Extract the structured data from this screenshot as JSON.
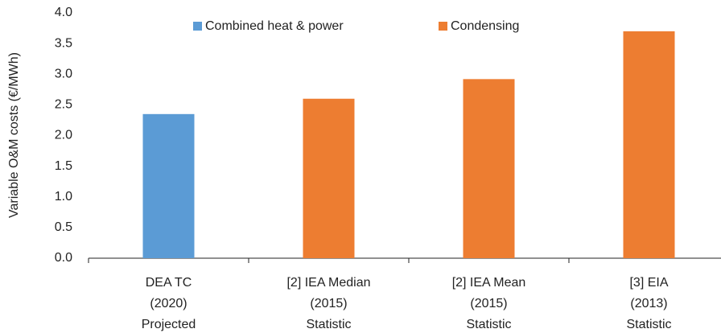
{
  "chart_data": {
    "type": "bar",
    "y_label": "Variable O&M costs (€/MWh)",
    "categories": [
      [
        "DEA TC",
        "(2020)",
        "Projected"
      ],
      [
        "[2] IEA Median",
        "(2015)",
        "Statistic"
      ],
      [
        "[2] IEA Mean",
        "(2015)",
        "Statistic"
      ],
      [
        "[3] EIA",
        "(2013)",
        "Statistic"
      ]
    ],
    "series": [
      {
        "name": "Combined heat & power",
        "color": "#5b9bd5",
        "values": [
          2.35,
          null,
          null,
          null
        ]
      },
      {
        "name": "Condensing",
        "color": "#ed7d31",
        "values": [
          null,
          2.6,
          2.92,
          3.7
        ]
      }
    ],
    "ylim": [
      0,
      4
    ],
    "yticks": [
      {
        "value": 0,
        "label": "0.0"
      },
      {
        "value": 0.5,
        "label": "0.5"
      },
      {
        "value": 1,
        "label": "1.0"
      },
      {
        "value": 1.5,
        "label": "1.5"
      },
      {
        "value": 2,
        "label": "2.0"
      },
      {
        "value": 2.5,
        "label": "2.5"
      },
      {
        "value": 3,
        "label": "3.0"
      },
      {
        "value": 3.5,
        "label": "3.5"
      },
      {
        "value": 4,
        "label": "4.0"
      }
    ],
    "grid": false,
    "legend": "top"
  }
}
